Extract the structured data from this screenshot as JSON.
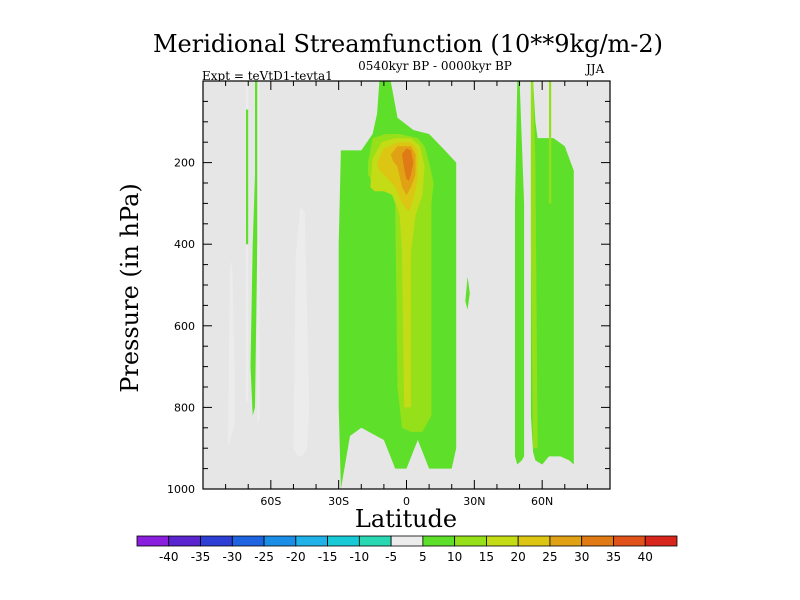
{
  "chart_data": {
    "type": "heatmap",
    "title": "Meridional Streamfunction (10**9kg/m-2)",
    "subtitle_left": "Expt = teVtD1-tevta1",
    "subtitle_center": "0540kyr BP - 0000kyr BP",
    "subtitle_right": "JJA",
    "xlabel": "Latitude",
    "ylabel": "Pressure (in hPa)",
    "xlim": [
      -90,
      90
    ],
    "ylim": [
      1000,
      0
    ],
    "x_ticks": [
      {
        "value": -60,
        "label": "60S"
      },
      {
        "value": -30,
        "label": "30S"
      },
      {
        "value": 0,
        "label": "0"
      },
      {
        "value": 30,
        "label": "30N"
      },
      {
        "value": 60,
        "label": "60N"
      }
    ],
    "y_ticks": [
      {
        "value": 200,
        "label": "200"
      },
      {
        "value": 400,
        "label": "400"
      },
      {
        "value": 600,
        "label": "600"
      },
      {
        "value": 800,
        "label": "800"
      },
      {
        "value": 1000,
        "label": "1000"
      }
    ],
    "background_color": "#e6e6e6",
    "colorbar": {
      "labels": [
        "-40",
        "-35",
        "-30",
        "-25",
        "-20",
        "-15",
        "-10",
        "-5",
        "5",
        "10",
        "15",
        "20",
        "25",
        "30",
        "35",
        "40"
      ],
      "colors": [
        "#8a1fdd",
        "#5a25cf",
        "#2e3fd6",
        "#1e64e0",
        "#1a8ee6",
        "#1fb1e8",
        "#18c9d6",
        "#2bd8b4",
        "#ececec",
        "#5ee02a",
        "#96e01a",
        "#c4dc15",
        "#dcc613",
        "#e0a114",
        "#e07a14",
        "#e0521a",
        "#d9261c"
      ]
    },
    "regions": [
      {
        "level": 8,
        "polygon": [
          [
            -79,
            900
          ],
          [
            -78,
            440
          ],
          [
            -77,
            460
          ],
          [
            -76,
            720
          ],
          [
            -76,
            840
          ],
          [
            -79,
            900
          ]
        ]
      },
      {
        "level": 8,
        "polygon": [
          [
            -71,
            0
          ],
          [
            -70,
            0
          ],
          [
            -70,
            790
          ],
          [
            -71,
            780
          ]
        ]
      },
      {
        "level": 9,
        "polygon": [
          [
            -71,
            70
          ],
          [
            -70,
            70
          ],
          [
            -70,
            400
          ],
          [
            -71,
            400
          ]
        ]
      },
      {
        "level": 9,
        "polygon": [
          [
            -67,
            0
          ],
          [
            -65,
            0
          ],
          [
            -65,
            230
          ],
          [
            -66,
            400
          ],
          [
            -67,
            800
          ],
          [
            -68,
            820
          ],
          [
            -69,
            700
          ],
          [
            -68,
            400
          ],
          [
            -67,
            230
          ]
        ]
      },
      {
        "level": 8,
        "polygon": [
          [
            -66,
            0
          ],
          [
            -65,
            0
          ],
          [
            -65,
            830
          ],
          [
            -66,
            840
          ]
        ]
      },
      {
        "level": 8,
        "polygon": [
          [
            -50,
            900
          ],
          [
            -49,
            430
          ],
          [
            -47,
            310
          ],
          [
            -45,
            320
          ],
          [
            -44,
            560
          ],
          [
            -43,
            800
          ],
          [
            -44,
            900
          ],
          [
            -46,
            920
          ],
          [
            -48,
            920
          ]
        ]
      },
      {
        "level": 9,
        "polygon": [
          [
            -29,
            1000
          ],
          [
            -30,
            800
          ],
          [
            -30,
            400
          ],
          [
            -29,
            170
          ],
          [
            -20,
            170
          ],
          [
            -15,
            130
          ],
          [
            -13,
            80
          ],
          [
            -12,
            0
          ],
          [
            -7,
            0
          ],
          [
            -4,
            90
          ],
          [
            3,
            120
          ],
          [
            10,
            130
          ],
          [
            17,
            170
          ],
          [
            22,
            200
          ],
          [
            22,
            900
          ],
          [
            20,
            950
          ],
          [
            10,
            950
          ],
          [
            5,
            880
          ],
          [
            0,
            950
          ],
          [
            -5,
            950
          ],
          [
            -10,
            880
          ],
          [
            -20,
            850
          ],
          [
            -25,
            870
          ]
        ]
      },
      {
        "level": 10,
        "polygon": [
          [
            -17,
            200
          ],
          [
            -15,
            140
          ],
          [
            -9,
            130
          ],
          [
            -3,
            130
          ],
          [
            5,
            140
          ],
          [
            8,
            160
          ],
          [
            10,
            200
          ],
          [
            12,
            250
          ],
          [
            11,
            300
          ],
          [
            11,
            820
          ],
          [
            7,
            860
          ],
          [
            2,
            860
          ],
          [
            -2,
            850
          ],
          [
            -4,
            750
          ],
          [
            -5,
            300
          ],
          [
            -8,
            260
          ],
          [
            -12,
            240
          ],
          [
            -15,
            250
          ],
          [
            -17,
            230
          ]
        ]
      },
      {
        "level": 11,
        "polygon": [
          [
            -16,
            260
          ],
          [
            -15,
            190
          ],
          [
            -11,
            150
          ],
          [
            -5,
            140
          ],
          [
            2,
            140
          ],
          [
            6,
            160
          ],
          [
            8,
            210
          ],
          [
            7,
            280
          ],
          [
            4,
            330
          ],
          [
            2,
            420
          ],
          [
            2,
            800
          ],
          [
            -1,
            800
          ],
          [
            -2,
            420
          ],
          [
            -3,
            330
          ],
          [
            -6,
            280
          ],
          [
            -10,
            270
          ],
          [
            -14,
            270
          ]
        ]
      },
      {
        "level": 12,
        "polygon": [
          [
            -13,
            200
          ],
          [
            -10,
            165
          ],
          [
            -4,
            150
          ],
          [
            2,
            150
          ],
          [
            5,
            170
          ],
          [
            5,
            240
          ],
          [
            3,
            290
          ],
          [
            1,
            320
          ],
          [
            -2,
            300
          ],
          [
            -5,
            260
          ],
          [
            -10,
            230
          ],
          [
            -12,
            220
          ]
        ]
      },
      {
        "level": 13,
        "polygon": [
          [
            -7,
            180
          ],
          [
            -4,
            160
          ],
          [
            2,
            160
          ],
          [
            4,
            180
          ],
          [
            4,
            230
          ],
          [
            2,
            260
          ],
          [
            0,
            280
          ],
          [
            -2,
            260
          ],
          [
            -4,
            210
          ],
          [
            -6,
            195
          ]
        ]
      },
      {
        "level": 14,
        "polygon": [
          [
            -2,
            180
          ],
          [
            0,
            165
          ],
          [
            2,
            170
          ],
          [
            3,
            200
          ],
          [
            2,
            230
          ],
          [
            1,
            245
          ],
          [
            0,
            240
          ],
          [
            -1,
            215
          ]
        ]
      },
      {
        "level": 9,
        "polygon": [
          [
            26,
            540
          ],
          [
            27,
            480
          ],
          [
            28,
            520
          ],
          [
            27,
            560
          ]
        ]
      },
      {
        "level": 9,
        "polygon": [
          [
            49,
            0
          ],
          [
            50,
            0
          ],
          [
            52,
            300
          ],
          [
            52,
            920
          ],
          [
            51,
            930
          ],
          [
            49,
            940
          ],
          [
            48,
            920
          ],
          [
            48,
            300
          ]
        ]
      },
      {
        "level": 9,
        "polygon": [
          [
            55,
            0
          ],
          [
            56,
            0
          ],
          [
            57,
            100
          ],
          [
            58,
            140
          ],
          [
            65,
            140
          ],
          [
            70,
            160
          ],
          [
            74,
            220
          ],
          [
            74,
            940
          ],
          [
            72,
            930
          ],
          [
            68,
            920
          ],
          [
            63,
            920
          ],
          [
            60,
            940
          ],
          [
            57,
            930
          ],
          [
            56,
            910
          ],
          [
            55,
            820
          ]
        ]
      },
      {
        "level": 10,
        "polygon": [
          [
            55,
            0
          ],
          [
            56,
            0
          ],
          [
            57,
            200
          ],
          [
            58,
            900
          ],
          [
            56,
            900
          ],
          [
            55,
            400
          ]
        ]
      },
      {
        "level": 10,
        "polygon": [
          [
            63,
            0
          ],
          [
            64,
            0
          ],
          [
            64,
            300
          ],
          [
            63,
            300
          ]
        ]
      }
    ]
  }
}
